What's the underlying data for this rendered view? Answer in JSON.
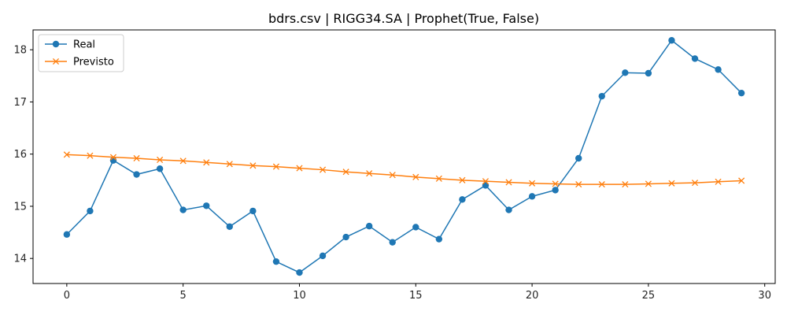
{
  "chart_data": {
    "type": "line",
    "title": "bdrs.csv | RIGG34.SA | Prophet(True, False)",
    "xlabel": "",
    "ylabel": "",
    "xlim": [
      -1.45,
      30.45
    ],
    "ylim": [
      13.52,
      18.38
    ],
    "xticks": [
      0,
      5,
      10,
      15,
      20,
      25,
      30
    ],
    "yticks": [
      14,
      15,
      16,
      17,
      18
    ],
    "grid": false,
    "legend_position": "top-left",
    "x": [
      0,
      1,
      2,
      3,
      4,
      5,
      6,
      7,
      8,
      9,
      10,
      11,
      12,
      13,
      14,
      15,
      16,
      17,
      18,
      19,
      20,
      21,
      22,
      23,
      24,
      25,
      26,
      27,
      28,
      29
    ],
    "series": [
      {
        "name": "Real",
        "color": "#1f77b4",
        "marker": "circle",
        "values": [
          14.46,
          14.91,
          15.88,
          15.61,
          15.72,
          14.93,
          15.01,
          14.61,
          14.91,
          13.94,
          13.73,
          14.05,
          14.41,
          14.62,
          14.31,
          14.6,
          14.37,
          15.13,
          15.4,
          14.93,
          15.19,
          15.31,
          15.92,
          17.11,
          17.56,
          17.55,
          18.18,
          17.83,
          17.62,
          17.17
        ]
      },
      {
        "name": "Previsto",
        "color": "#ff7f0e",
        "marker": "x",
        "values": [
          15.99,
          15.97,
          15.94,
          15.92,
          15.89,
          15.87,
          15.84,
          15.81,
          15.78,
          15.76,
          15.73,
          15.7,
          15.66,
          15.63,
          15.6,
          15.56,
          15.53,
          15.5,
          15.48,
          15.46,
          15.44,
          15.43,
          15.42,
          15.42,
          15.42,
          15.43,
          15.44,
          15.45,
          15.47,
          15.49
        ]
      }
    ]
  }
}
